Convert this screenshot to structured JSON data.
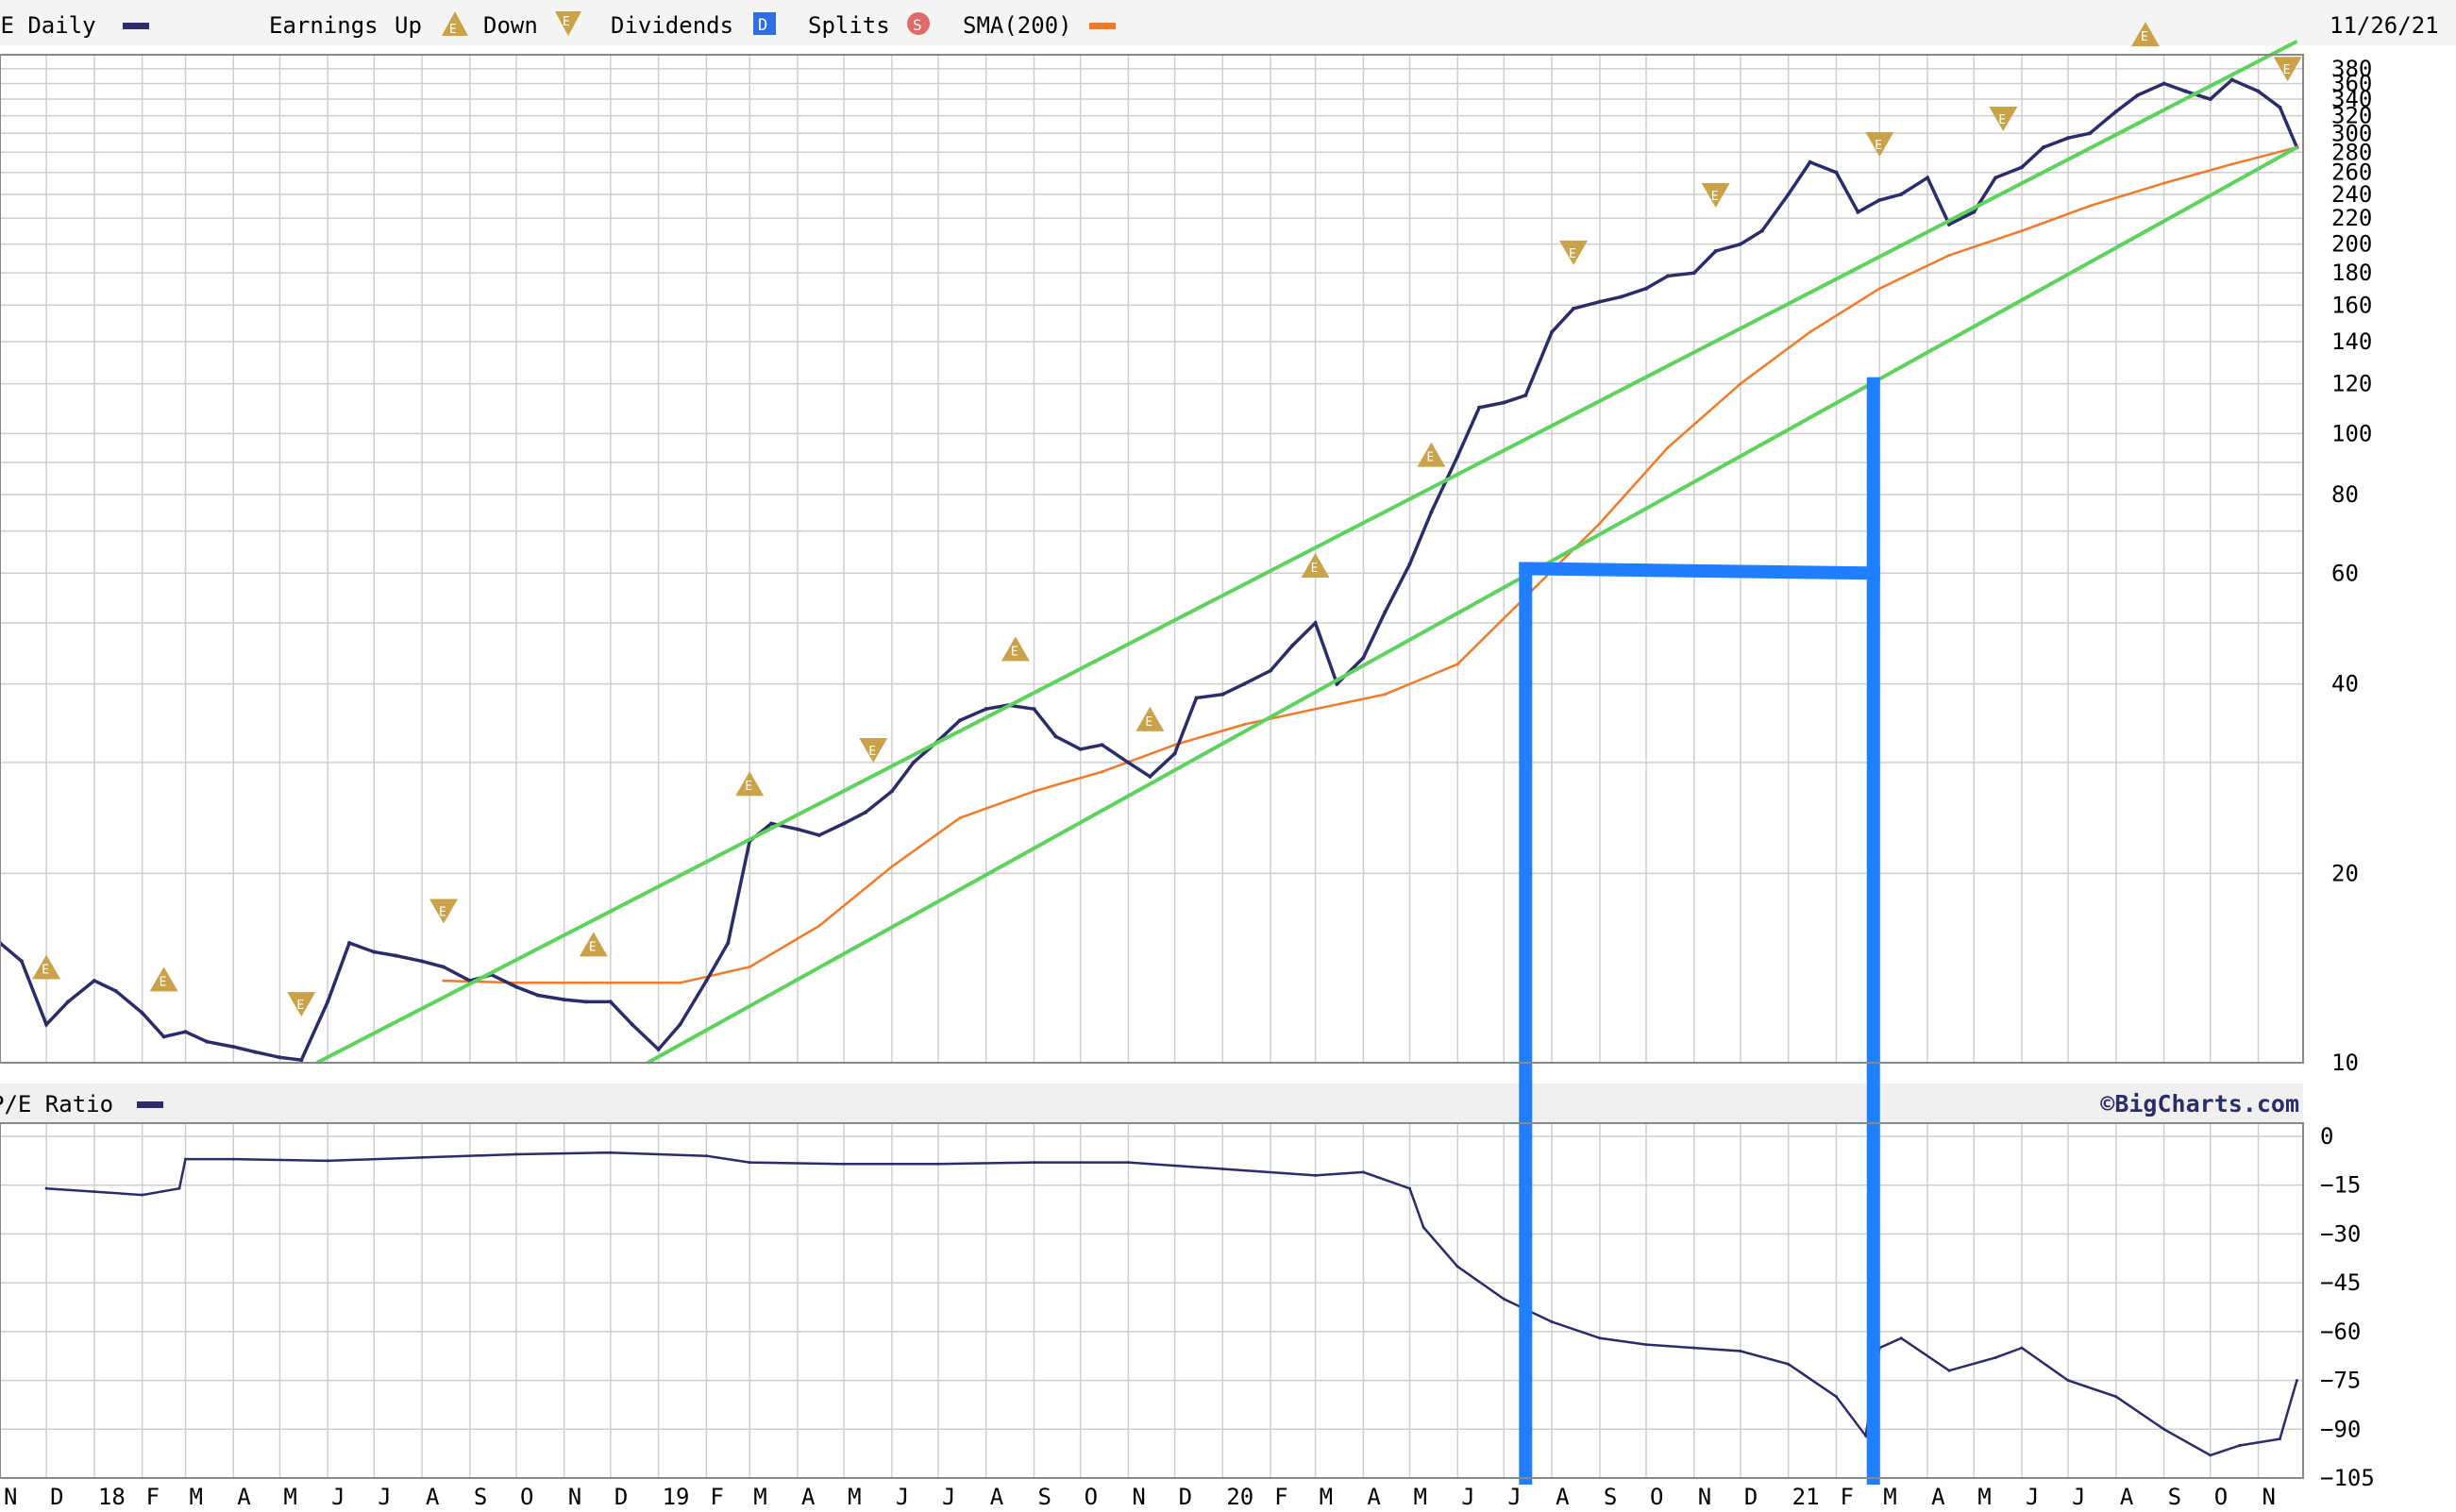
{
  "legend": {
    "symbol": "SE Daily",
    "earnings_label": "Earnings",
    "up_label": "Up",
    "down_label": "Down",
    "dividends_label": "Dividends",
    "splits_label": "Splits",
    "sma_label": "SMA(200)",
    "date": "11/26/21",
    "dividend_glyph": "D",
    "split_glyph": "S",
    "earnings_glyph": "E"
  },
  "pe_panel": {
    "title": "P/E Ratio",
    "credit": "©BigCharts.com"
  },
  "colors": {
    "price": "#2b2d6a",
    "sma": "#f07a28",
    "trend": "#5dd35d",
    "annotation": "#1f7fff",
    "earnings": "#c9a24a",
    "dividends": "#2f6fe0",
    "splits": "#e06a6a",
    "grid": "#cfcfcf"
  },
  "chart_data": [
    {
      "type": "line",
      "scale": "log",
      "ylim": [
        10,
        400
      ],
      "yticks": [
        10,
        20,
        40,
        60,
        80,
        100,
        120,
        140,
        160,
        180,
        200,
        220,
        240,
        260,
        280,
        300,
        320,
        340,
        360,
        380
      ],
      "xlim": [
        "2017-11-01",
        "2021-11-30"
      ],
      "x_tick_labels": [
        {
          "label": "N",
          "date": "2017-11-01"
        },
        {
          "label": "D",
          "date": "2017-12-01"
        },
        {
          "label": "18",
          "date": "2018-01-01"
        },
        {
          "label": "F",
          "date": "2018-02-01"
        },
        {
          "label": "M",
          "date": "2018-03-01"
        },
        {
          "label": "A",
          "date": "2018-04-01"
        },
        {
          "label": "M",
          "date": "2018-05-01"
        },
        {
          "label": "J",
          "date": "2018-06-01"
        },
        {
          "label": "J",
          "date": "2018-07-01"
        },
        {
          "label": "A",
          "date": "2018-08-01"
        },
        {
          "label": "S",
          "date": "2018-09-01"
        },
        {
          "label": "O",
          "date": "2018-10-01"
        },
        {
          "label": "N",
          "date": "2018-11-01"
        },
        {
          "label": "D",
          "date": "2018-12-01"
        },
        {
          "label": "19",
          "date": "2019-01-01"
        },
        {
          "label": "F",
          "date": "2019-02-01"
        },
        {
          "label": "M",
          "date": "2019-03-01"
        },
        {
          "label": "A",
          "date": "2019-04-01"
        },
        {
          "label": "M",
          "date": "2019-05-01"
        },
        {
          "label": "J",
          "date": "2019-06-01"
        },
        {
          "label": "J",
          "date": "2019-07-01"
        },
        {
          "label": "A",
          "date": "2019-08-01"
        },
        {
          "label": "S",
          "date": "2019-09-01"
        },
        {
          "label": "O",
          "date": "2019-10-01"
        },
        {
          "label": "N",
          "date": "2019-11-01"
        },
        {
          "label": "D",
          "date": "2019-12-01"
        },
        {
          "label": "20",
          "date": "2020-01-01"
        },
        {
          "label": "F",
          "date": "2020-02-01"
        },
        {
          "label": "M",
          "date": "2020-03-01"
        },
        {
          "label": "A",
          "date": "2020-04-01"
        },
        {
          "label": "M",
          "date": "2020-05-01"
        },
        {
          "label": "J",
          "date": "2020-06-01"
        },
        {
          "label": "J",
          "date": "2020-07-01"
        },
        {
          "label": "A",
          "date": "2020-08-01"
        },
        {
          "label": "S",
          "date": "2020-09-01"
        },
        {
          "label": "O",
          "date": "2020-10-01"
        },
        {
          "label": "N",
          "date": "2020-11-01"
        },
        {
          "label": "D",
          "date": "2020-12-01"
        },
        {
          "label": "21",
          "date": "2021-01-01"
        },
        {
          "label": "F",
          "date": "2021-02-01"
        },
        {
          "label": "M",
          "date": "2021-03-01"
        },
        {
          "label": "A",
          "date": "2021-04-01"
        },
        {
          "label": "M",
          "date": "2021-05-01"
        },
        {
          "label": "J",
          "date": "2021-06-01"
        },
        {
          "label": "J",
          "date": "2021-07-01"
        },
        {
          "label": "A",
          "date": "2021-08-01"
        },
        {
          "label": "S",
          "date": "2021-09-01"
        },
        {
          "label": "O",
          "date": "2021-10-01"
        },
        {
          "label": "N",
          "date": "2021-11-01"
        }
      ],
      "series": [
        {
          "name": "SE Daily",
          "x": [
            "2017-11-01",
            "2017-11-15",
            "2017-12-01",
            "2017-12-15",
            "2018-01-01",
            "2018-01-15",
            "2018-02-01",
            "2018-02-15",
            "2018-03-01",
            "2018-03-15",
            "2018-04-01",
            "2018-04-15",
            "2018-05-01",
            "2018-05-15",
            "2018-06-01",
            "2018-06-15",
            "2018-07-01",
            "2018-07-15",
            "2018-08-01",
            "2018-08-15",
            "2018-09-01",
            "2018-09-15",
            "2018-10-01",
            "2018-10-15",
            "2018-11-01",
            "2018-11-15",
            "2018-12-01",
            "2018-12-15",
            "2019-01-01",
            "2019-01-15",
            "2019-02-01",
            "2019-02-15",
            "2019-03-01",
            "2019-03-15",
            "2019-04-01",
            "2019-04-15",
            "2019-05-01",
            "2019-05-15",
            "2019-06-01",
            "2019-06-15",
            "2019-07-01",
            "2019-07-15",
            "2019-08-01",
            "2019-08-15",
            "2019-09-01",
            "2019-09-15",
            "2019-10-01",
            "2019-10-15",
            "2019-11-01",
            "2019-11-15",
            "2019-12-01",
            "2019-12-15",
            "2020-01-01",
            "2020-01-15",
            "2020-02-01",
            "2020-02-15",
            "2020-03-01",
            "2020-03-15",
            "2020-04-01",
            "2020-04-15",
            "2020-05-01",
            "2020-05-15",
            "2020-06-01",
            "2020-06-15",
            "2020-07-01",
            "2020-07-15",
            "2020-08-01",
            "2020-08-15",
            "2020-09-01",
            "2020-09-15",
            "2020-10-01",
            "2020-10-15",
            "2020-11-01",
            "2020-11-15",
            "2020-12-01",
            "2020-12-15",
            "2021-01-01",
            "2021-01-15",
            "2021-02-01",
            "2021-02-15",
            "2021-03-01",
            "2021-03-15",
            "2021-04-01",
            "2021-04-15",
            "2021-05-01",
            "2021-05-15",
            "2021-06-01",
            "2021-06-15",
            "2021-07-01",
            "2021-07-15",
            "2021-08-01",
            "2021-08-15",
            "2021-09-01",
            "2021-09-15",
            "2021-10-01",
            "2021-10-15",
            "2021-11-01",
            "2021-11-15",
            "2021-11-26"
          ],
          "values": [
            15.5,
            14.5,
            11.5,
            12.5,
            13.5,
            13,
            12,
            11,
            11.2,
            10.8,
            10.6,
            10.4,
            10.2,
            10.1,
            12.5,
            15.5,
            15,
            14.8,
            14.5,
            14.2,
            13.5,
            13.8,
            13.2,
            12.8,
            12.6,
            12.5,
            12.5,
            11.5,
            10.5,
            11.5,
            13.5,
            15.5,
            22.5,
            24,
            23.5,
            23,
            24,
            25,
            27,
            30,
            32.5,
            35,
            36.5,
            37,
            36.5,
            33,
            31.5,
            32,
            30,
            28.5,
            31,
            38,
            38.5,
            40,
            42,
            46,
            50,
            40,
            44,
            52,
            62,
            75,
            92,
            110,
            112,
            115,
            145,
            158,
            162,
            165,
            170,
            178,
            180,
            195,
            200,
            210,
            240,
            270,
            260,
            225,
            235,
            240,
            255,
            215,
            225,
            255,
            265,
            285,
            295,
            300,
            325,
            345,
            360,
            350,
            340,
            365,
            350,
            330,
            285
          ]
        },
        {
          "name": "SMA(200)",
          "x": [
            "2018-08-15",
            "2018-10-01",
            "2018-11-15",
            "2019-01-15",
            "2019-03-01",
            "2019-04-15",
            "2019-06-01",
            "2019-07-15",
            "2019-09-01",
            "2019-10-15",
            "2019-12-01",
            "2020-01-15",
            "2020-03-01",
            "2020-04-15",
            "2020-06-01",
            "2020-07-15",
            "2020-09-01",
            "2020-10-15",
            "2020-12-01",
            "2021-01-15",
            "2021-03-01",
            "2021-04-15",
            "2021-06-01",
            "2021-07-15",
            "2021-09-01",
            "2021-10-15",
            "2021-11-26"
          ],
          "values": [
            13.5,
            13.4,
            13.4,
            13.4,
            14.2,
            16.5,
            20.5,
            24.5,
            27,
            29,
            32,
            34.5,
            36.5,
            38.5,
            43,
            55,
            72,
            95,
            120,
            145,
            170,
            192,
            210,
            230,
            250,
            268,
            285
          ]
        },
        {
          "name": "P/E Ratio",
          "panel": "lower",
          "ylim": [
            -105,
            0
          ],
          "yticks": [
            0,
            -15,
            -30,
            -45,
            -60,
            -75,
            -90,
            -105
          ],
          "x": [
            "2017-12-01",
            "2018-01-01",
            "2018-02-01",
            "2018-02-25",
            "2018-03-01",
            "2018-04-01",
            "2018-06-01",
            "2018-08-01",
            "2018-10-01",
            "2018-12-01",
            "2019-02-01",
            "2019-03-01",
            "2019-05-01",
            "2019-07-01",
            "2019-09-01",
            "2019-11-01",
            "2020-01-01",
            "2020-03-01",
            "2020-04-01",
            "2020-05-01",
            "2020-05-10",
            "2020-06-01",
            "2020-07-01",
            "2020-08-01",
            "2020-09-01",
            "2020-10-01",
            "2020-11-01",
            "2020-12-01",
            "2021-01-01",
            "2021-02-01",
            "2021-02-20",
            "2021-03-01",
            "2021-03-15",
            "2021-04-15",
            "2021-05-15",
            "2021-06-01",
            "2021-07-01",
            "2021-08-01",
            "2021-09-01",
            "2021-10-01",
            "2021-10-20",
            "2021-11-15",
            "2021-11-26"
          ],
          "values": [
            -16,
            -17,
            -18,
            -16,
            -7,
            -7,
            -7.5,
            -6.5,
            -5.5,
            -5,
            -6,
            -8,
            -8.5,
            -8.5,
            -8,
            -8,
            -10,
            -12,
            -11,
            -16,
            -28,
            -40,
            -50,
            -57,
            -62,
            -64,
            -65,
            -66,
            -70,
            -80,
            -92,
            -65,
            -62,
            -72,
            -68,
            -65,
            -75,
            -80,
            -90,
            -98,
            -95,
            -93,
            -75
          ]
        }
      ],
      "earnings_events": [
        {
          "date": "2017-12-01",
          "direction": "up"
        },
        {
          "date": "2018-02-15",
          "direction": "up"
        },
        {
          "date": "2018-05-15",
          "direction": "down"
        },
        {
          "date": "2018-08-15",
          "direction": "down"
        },
        {
          "date": "2018-11-20",
          "direction": "up"
        },
        {
          "date": "2019-03-01",
          "direction": "up"
        },
        {
          "date": "2019-05-20",
          "direction": "down"
        },
        {
          "date": "2019-08-20",
          "direction": "up"
        },
        {
          "date": "2019-11-15",
          "direction": "up"
        },
        {
          "date": "2020-03-01",
          "direction": "up"
        },
        {
          "date": "2020-05-15",
          "direction": "up"
        },
        {
          "date": "2020-08-15",
          "direction": "down"
        },
        {
          "date": "2020-11-15",
          "direction": "down"
        },
        {
          "date": "2021-03-01",
          "direction": "down"
        },
        {
          "date": "2021-05-20",
          "direction": "down"
        },
        {
          "date": "2021-08-20",
          "direction": "up"
        },
        {
          "date": "2021-11-20",
          "direction": "down"
        }
      ],
      "trend_channel": [
        {
          "from": {
            "date": "2018-05-25",
            "value": 10
          },
          "to": {
            "date": "2021-11-26",
            "value": 420
          }
        },
        {
          "from": {
            "date": "2018-12-25",
            "value": 10
          },
          "to": {
            "date": "2021-11-26",
            "value": 285
          }
        }
      ],
      "annotation_lines": [
        {
          "from": {
            "date": "2020-07-15",
            "value": 61
          },
          "to": {
            "date": "2021-02-25",
            "value": 60
          }
        },
        {
          "from": {
            "date": "2020-07-15",
            "value": 61
          },
          "to": {
            "date": "2020-07-15",
            "value": -105,
            "panel": "lower"
          }
        },
        {
          "from": {
            "date": "2021-02-25",
            "value": 120
          },
          "to": {
            "date": "2021-02-25",
            "value": -105,
            "panel": "lower"
          }
        }
      ]
    }
  ]
}
